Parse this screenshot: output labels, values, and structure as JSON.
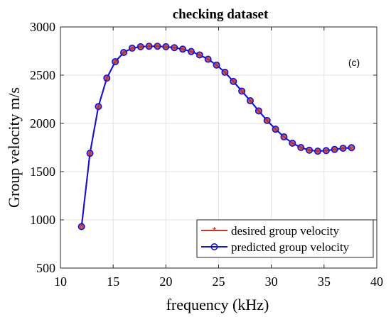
{
  "chart_data": {
    "type": "line",
    "title": "checking dataset",
    "xlabel": "frequency (kHz)",
    "ylabel": "Group velocity m/s",
    "annotation": "(c)",
    "xlim": [
      10,
      40
    ],
    "ylim": [
      500,
      3000
    ],
    "xticks": [
      10,
      15,
      20,
      25,
      30,
      35,
      40
    ],
    "yticks": [
      500,
      1000,
      1500,
      2000,
      2500,
      3000
    ],
    "grid": true,
    "legend_position": "bottom-right",
    "x": [
      12.0,
      12.8,
      13.6,
      14.4,
      15.2,
      16.0,
      16.8,
      17.6,
      18.4,
      19.2,
      20.0,
      20.8,
      21.6,
      22.4,
      23.2,
      24.0,
      24.8,
      25.6,
      26.4,
      27.2,
      28.0,
      28.8,
      29.6,
      30.4,
      31.2,
      32.0,
      32.8,
      33.6,
      34.4,
      35.2,
      36.0,
      36.8,
      37.6
    ],
    "series": [
      {
        "name": "desired group velocity",
        "color": "#c0392b",
        "marker": "asterisk",
        "values": [
          930,
          1690,
          2175,
          2470,
          2640,
          2735,
          2780,
          2795,
          2800,
          2800,
          2795,
          2785,
          2770,
          2745,
          2710,
          2665,
          2605,
          2530,
          2435,
          2335,
          2235,
          2130,
          2030,
          1940,
          1860,
          1795,
          1750,
          1722,
          1712,
          1718,
          1730,
          1742,
          1748
        ]
      },
      {
        "name": "predicted group velocity",
        "color": "#1212e0",
        "marker": "circle",
        "values": [
          930,
          1690,
          2175,
          2470,
          2640,
          2735,
          2780,
          2795,
          2800,
          2800,
          2795,
          2785,
          2770,
          2745,
          2710,
          2665,
          2605,
          2530,
          2435,
          2335,
          2235,
          2130,
          2030,
          1940,
          1860,
          1795,
          1750,
          1722,
          1712,
          1718,
          1730,
          1742,
          1748
        ]
      }
    ]
  }
}
